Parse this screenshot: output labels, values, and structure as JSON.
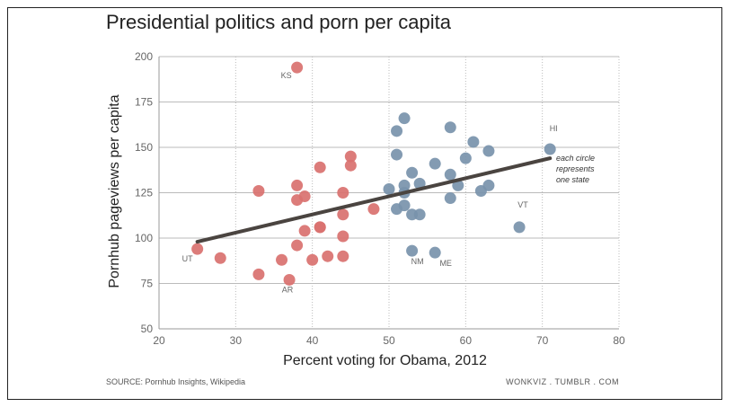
{
  "chart_data": {
    "type": "scatter",
    "title": "Presidential politics and porn per capita",
    "xlabel": "Percent voting for Obama, 2012",
    "ylabel": "Pornhub pageviews per capita",
    "xlim": [
      20,
      80
    ],
    "ylim": [
      50,
      200
    ],
    "x_ticks": [
      20,
      30,
      40,
      50,
      60,
      70,
      80
    ],
    "y_ticks": [
      50,
      75,
      100,
      125,
      150,
      175,
      200
    ],
    "grid": "dotted",
    "colors": {
      "romney": "#d9716f",
      "obama": "#7893ab",
      "trend": "#4a4440"
    },
    "series": [
      {
        "points": [
          [
            25,
            94
          ],
          [
            28,
            89
          ],
          [
            33,
            126
          ],
          [
            33,
            80
          ],
          [
            36,
            88
          ],
          [
            37,
            77
          ],
          [
            38,
            194
          ],
          [
            38,
            129
          ],
          [
            38,
            121
          ],
          [
            38,
            96
          ],
          [
            39,
            123
          ],
          [
            39,
            104
          ],
          [
            40,
            88
          ],
          [
            41,
            139
          ],
          [
            41,
            106
          ],
          [
            41,
            106
          ],
          [
            42,
            90
          ],
          [
            44,
            125
          ],
          [
            44,
            113
          ],
          [
            44,
            101
          ],
          [
            44,
            90
          ],
          [
            45,
            145
          ],
          [
            45,
            140
          ],
          [
            48,
            116
          ]
        ]
      },
      {
        "points": [
          [
            50,
            127
          ],
          [
            51,
            159
          ],
          [
            51,
            146
          ],
          [
            51,
            116
          ],
          [
            52,
            166
          ],
          [
            52,
            129
          ],
          [
            52,
            125
          ],
          [
            52,
            118
          ],
          [
            53,
            136
          ],
          [
            53,
            113
          ],
          [
            53,
            93
          ],
          [
            54,
            130
          ],
          [
            54,
            113
          ],
          [
            56,
            141
          ],
          [
            56,
            92
          ],
          [
            58,
            161
          ],
          [
            58,
            135
          ],
          [
            58,
            122
          ],
          [
            59,
            129
          ],
          [
            60,
            144
          ],
          [
            61,
            153
          ],
          [
            62,
            126
          ],
          [
            63,
            148
          ],
          [
            63,
            129
          ],
          [
            67,
            106
          ],
          [
            71,
            149
          ]
        ]
      }
    ],
    "trendline": {
      "x": [
        25,
        71
      ],
      "y": [
        98,
        144
      ]
    },
    "point_labels": [
      {
        "text": "KS",
        "x": 38,
        "y": 194
      },
      {
        "text": "UT",
        "x": 25,
        "y": 94
      },
      {
        "text": "AR",
        "x": 37,
        "y": 77
      },
      {
        "text": "NM",
        "x": 53,
        "y": 93
      },
      {
        "text": "ME",
        "x": 56,
        "y": 92
      },
      {
        "text": "VT",
        "x": 67,
        "y": 106
      },
      {
        "text": "HI",
        "x": 71,
        "y": 149
      }
    ],
    "annotation": [
      "each circle",
      "represents",
      "one state"
    ]
  },
  "footer": {
    "source": "SOURCE: Pornhub Insights, Wikipedia",
    "credit": "WONKVIZ . TUMBLR . COM"
  }
}
